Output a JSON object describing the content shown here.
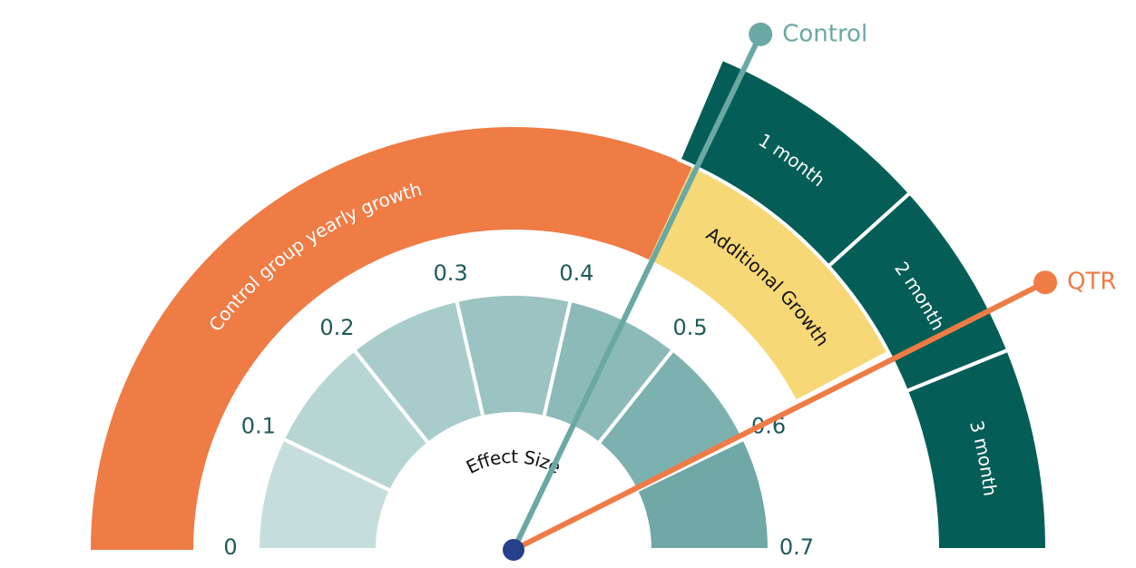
{
  "gauge": {
    "ticks": [
      "0",
      "0.1",
      "0.2",
      "0.3",
      "0.4",
      "0.5",
      "0.6",
      "0.7"
    ],
    "center_label": "Effect Size",
    "outer_ring": {
      "control": "Control group yearly growth",
      "additional": "Additional Growth"
    },
    "months": [
      "1 month",
      "2 month",
      "3 month"
    ],
    "needles": [
      {
        "label": "Control"
      },
      {
        "label": "QTR"
      }
    ]
  }
}
